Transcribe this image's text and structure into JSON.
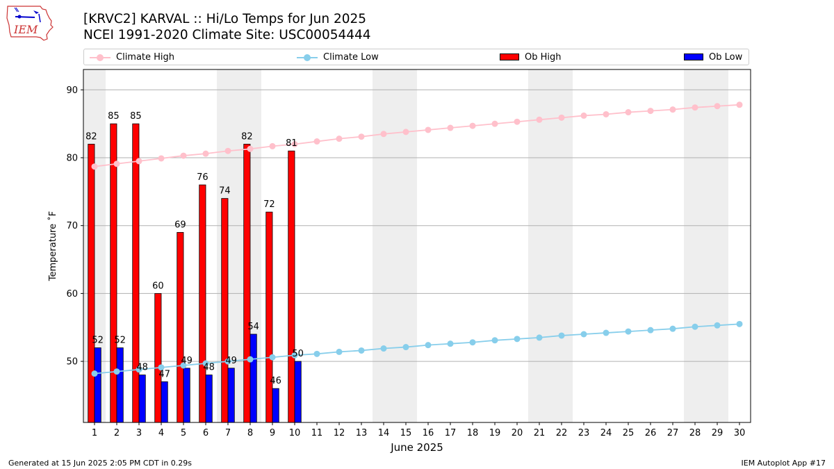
{
  "header": {
    "title_line1": "[KRVC2] KARVAL :: Hi/Lo Temps for Jun 2025",
    "title_line2": "NCEI 1991-2020 Climate Site: USC00054444",
    "logo_text": "IEM"
  },
  "legend": {
    "climate_high": "Climate High",
    "climate_low": "Climate Low",
    "ob_high": "Ob High",
    "ob_low": "Ob Low"
  },
  "footer": {
    "left": "Generated at 15 Jun 2025 2:05 PM CDT in 0.29s",
    "right": "IEM Autoplot App #17"
  },
  "colors": {
    "ob_high": "#ff0000",
    "ob_low": "#0000ff",
    "climate_high": "#ffc0cb",
    "climate_low": "#87ceeb",
    "weekend_band": "#eeeeee",
    "grid": "#b0b0b0"
  },
  "chart_data": {
    "type": "bar",
    "xlabel": "June 2025",
    "ylabel": "Temperature ˚F",
    "x": [
      1,
      2,
      3,
      4,
      5,
      6,
      7,
      8,
      9,
      10,
      11,
      12,
      13,
      14,
      15,
      16,
      17,
      18,
      19,
      20,
      21,
      22,
      23,
      24,
      25,
      26,
      27,
      28,
      29,
      30
    ],
    "xlim": [
      0.5,
      30.5
    ],
    "ylim": [
      41,
      93
    ],
    "yticks": [
      50,
      60,
      70,
      80,
      90
    ],
    "grid": true,
    "legend_position": "top",
    "weekend_days": [
      1,
      7,
      8,
      14,
      15,
      21,
      22,
      28,
      29
    ],
    "series": [
      {
        "name": "Ob High",
        "kind": "bar",
        "x": [
          1,
          2,
          3,
          4,
          5,
          6,
          7,
          8,
          9,
          10
        ],
        "values": [
          82,
          85,
          85,
          60,
          69,
          76,
          74,
          82,
          72,
          81
        ]
      },
      {
        "name": "Ob Low",
        "kind": "bar",
        "x": [
          1,
          2,
          3,
          4,
          5,
          6,
          7,
          8,
          9,
          10
        ],
        "values": [
          52,
          52,
          48,
          47,
          49,
          48,
          49,
          54,
          46,
          50
        ]
      },
      {
        "name": "Climate High",
        "kind": "line",
        "values": [
          78.7,
          79.1,
          79.5,
          79.9,
          80.3,
          80.6,
          81.0,
          81.3,
          81.7,
          82.0,
          82.4,
          82.8,
          83.1,
          83.5,
          83.8,
          84.1,
          84.4,
          84.7,
          85.0,
          85.3,
          85.6,
          85.9,
          86.2,
          86.4,
          86.7,
          86.9,
          87.1,
          87.4,
          87.6,
          87.8
        ]
      },
      {
        "name": "Climate Low",
        "kind": "line",
        "values": [
          48.2,
          48.5,
          48.8,
          49.1,
          49.4,
          49.7,
          50.0,
          50.3,
          50.6,
          50.9,
          51.1,
          51.4,
          51.6,
          51.9,
          52.1,
          52.4,
          52.6,
          52.8,
          53.1,
          53.3,
          53.5,
          53.8,
          54.0,
          54.2,
          54.4,
          54.6,
          54.8,
          55.1,
          55.3,
          55.5
        ]
      }
    ]
  }
}
